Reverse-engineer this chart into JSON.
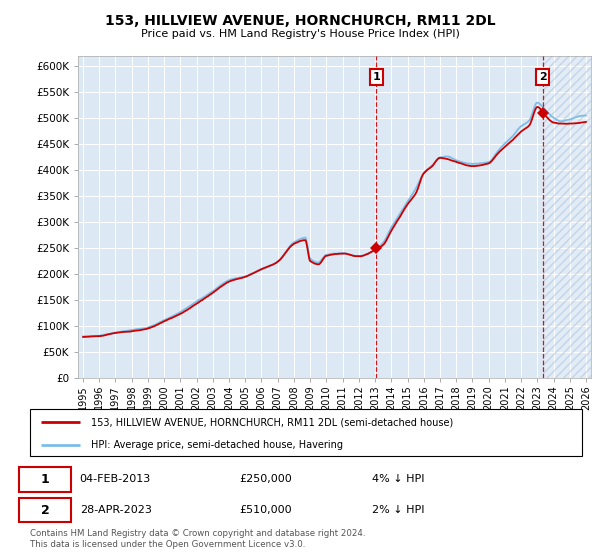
{
  "title": "153, HILLVIEW AVENUE, HORNCHURCH, RM11 2DL",
  "subtitle": "Price paid vs. HM Land Registry's House Price Index (HPI)",
  "ylim": [
    0,
    620000
  ],
  "yticks": [
    0,
    50000,
    100000,
    150000,
    200000,
    250000,
    300000,
    350000,
    400000,
    450000,
    500000,
    550000,
    600000
  ],
  "ytick_labels": [
    "£0",
    "£50K",
    "£100K",
    "£150K",
    "£200K",
    "£250K",
    "£300K",
    "£350K",
    "£400K",
    "£450K",
    "£500K",
    "£550K",
    "£600K"
  ],
  "xlim_start": 1994.7,
  "xlim_end": 2026.3,
  "hpi_color": "#7dbde8",
  "price_color": "#cc0000",
  "bg_color": "#dce9f5",
  "transaction1_date": 2013.085,
  "transaction1_price": 250000,
  "transaction2_date": 2023.32,
  "transaction2_price": 510000,
  "legend1": "153, HILLVIEW AVENUE, HORNCHURCH, RM11 2DL (semi-detached house)",
  "legend2": "HPI: Average price, semi-detached house, Havering",
  "ann1_label": "1",
  "ann1_date_str": "04-FEB-2013",
  "ann1_price_str": "£250,000",
  "ann1_hpi_str": "4% ↓ HPI",
  "ann2_label": "2",
  "ann2_date_str": "28-APR-2023",
  "ann2_price_str": "£510,000",
  "ann2_hpi_str": "2% ↓ HPI",
  "footer": "Contains HM Land Registry data © Crown copyright and database right 2024.\nThis data is licensed under the Open Government Licence v3.0.",
  "xtick_years": [
    1995,
    1996,
    1997,
    1998,
    1999,
    2000,
    2001,
    2002,
    2003,
    2004,
    2005,
    2006,
    2007,
    2008,
    2009,
    2010,
    2011,
    2012,
    2013,
    2014,
    2015,
    2016,
    2017,
    2018,
    2019,
    2020,
    2021,
    2022,
    2023,
    2024,
    2025,
    2026
  ],
  "hpi_anchors_t": [
    1995,
    1996,
    1997,
    1998,
    1999,
    2000,
    2001,
    2002,
    2003,
    2004,
    2005,
    2006,
    2007,
    2008,
    2008.7,
    2009,
    2009.5,
    2010,
    2011,
    2012,
    2013,
    2013.5,
    2014,
    2014.5,
    2015,
    2015.5,
    2016,
    2016.5,
    2017,
    2017.5,
    2018,
    2019,
    2020,
    2020.5,
    2021,
    2021.5,
    2022,
    2022.5,
    2023,
    2023.5,
    2024,
    2024.5,
    2025,
    2025.5,
    2026
  ],
  "hpi_anchors_v": [
    80000,
    82000,
    88000,
    92000,
    98000,
    112000,
    128000,
    148000,
    168000,
    190000,
    198000,
    212000,
    228000,
    265000,
    275000,
    235000,
    228000,
    242000,
    244000,
    238000,
    252000,
    265000,
    295000,
    320000,
    345000,
    370000,
    400000,
    415000,
    430000,
    432000,
    425000,
    418000,
    420000,
    438000,
    455000,
    470000,
    488000,
    500000,
    535000,
    520000,
    505000,
    498000,
    502000,
    508000,
    510000
  ],
  "price_anchors_t": [
    1995,
    1996,
    1997,
    1998,
    1999,
    2000,
    2001,
    2002,
    2003,
    2004,
    2005,
    2006,
    2007,
    2008,
    2008.7,
    2009,
    2009.5,
    2010,
    2011,
    2012,
    2013,
    2013.5,
    2014,
    2014.5,
    2015,
    2015.5,
    2016,
    2016.5,
    2017,
    2018,
    2019,
    2020,
    2020.5,
    2021,
    2021.5,
    2022,
    2022.5,
    2023,
    2023.5,
    2024,
    2025,
    2026
  ],
  "price_anchors_v": [
    79000,
    80000,
    86000,
    90000,
    96000,
    110000,
    125000,
    145000,
    165000,
    186000,
    196000,
    210000,
    225000,
    260000,
    268000,
    228000,
    222000,
    238000,
    242000,
    236000,
    248000,
    258000,
    285000,
    310000,
    335000,
    355000,
    395000,
    408000,
    425000,
    418000,
    410000,
    415000,
    432000,
    448000,
    462000,
    478000,
    490000,
    525000,
    508000,
    495000,
    492000,
    495000
  ]
}
